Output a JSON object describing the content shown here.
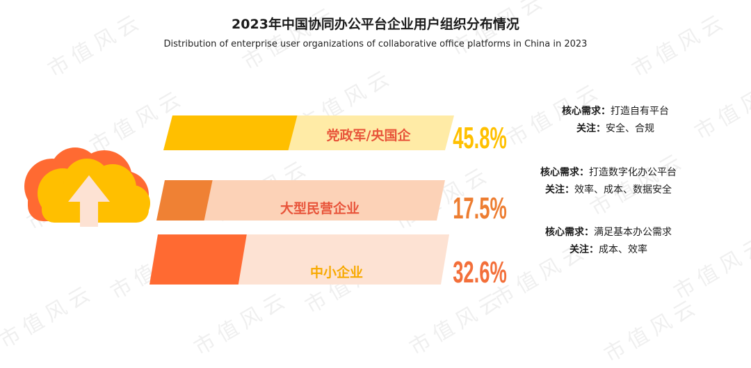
{
  "watermark": "市值风云",
  "chart_data": {
    "type": "bar",
    "title": "2023年中国协同办公平台企业用户组织分布情况",
    "subtitle": "Distribution of enterprise user organizations of collaborative office platforms in China in 2023",
    "unit": "%",
    "categories": [
      "党政军/央国企",
      "大型民营企业",
      "中小企业"
    ],
    "values": [
      45.8,
      17.5,
      32.6
    ],
    "value_labels": [
      "45.8%",
      "17.5%",
      "32.6%"
    ],
    "colors": {
      "dark": [
        "#FFBF00",
        "#EF8134",
        "#FF6A32"
      ],
      "light": [
        "#FFEBA6",
        "#FCD2B7",
        "#FDE2D3"
      ],
      "label": [
        "#E8543A",
        "#E8543A",
        "#F7A900"
      ],
      "value": [
        "#FFC000",
        "#ED7D31",
        "#F36F3A"
      ]
    },
    "annotations": [
      {
        "core_label": "核心需求：",
        "core_text": "打造自有平台",
        "focus_label": "关注：",
        "focus_text": "安全、合规"
      },
      {
        "core_label": "核心需求：",
        "core_text": "打造数字化办公平台",
        "focus_label": "关注：",
        "focus_text": "效率、成本、数据安全"
      },
      {
        "core_label": "核心需求：",
        "core_text": "满足基本办公需求",
        "focus_label": "关注：",
        "focus_text": "成本、效率"
      }
    ]
  }
}
